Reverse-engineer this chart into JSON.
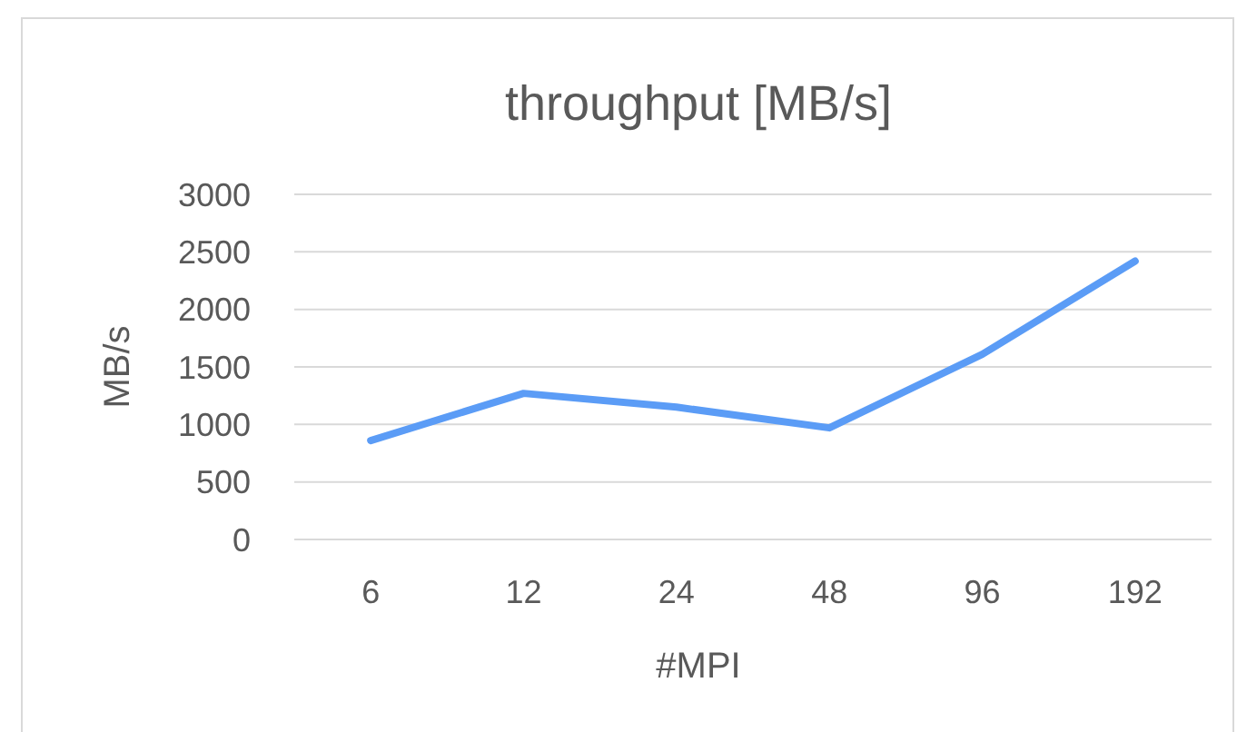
{
  "chart_data": {
    "type": "line",
    "title": "throughput [MB/s]",
    "xlabel": "#MPI",
    "ylabel": "MB/s",
    "categories": [
      "6",
      "12",
      "24",
      "48",
      "96",
      "192"
    ],
    "series": [
      {
        "color": "#5b9cf6",
        "values": [
          860,
          1270,
          1150,
          970,
          1610,
          2420
        ]
      }
    ],
    "ylim": [
      0,
      3000
    ],
    "yticks": [
      0,
      500,
      1000,
      1500,
      2000,
      2500,
      3000
    ],
    "grid": "y",
    "marker": "none",
    "line_style": "solid"
  }
}
